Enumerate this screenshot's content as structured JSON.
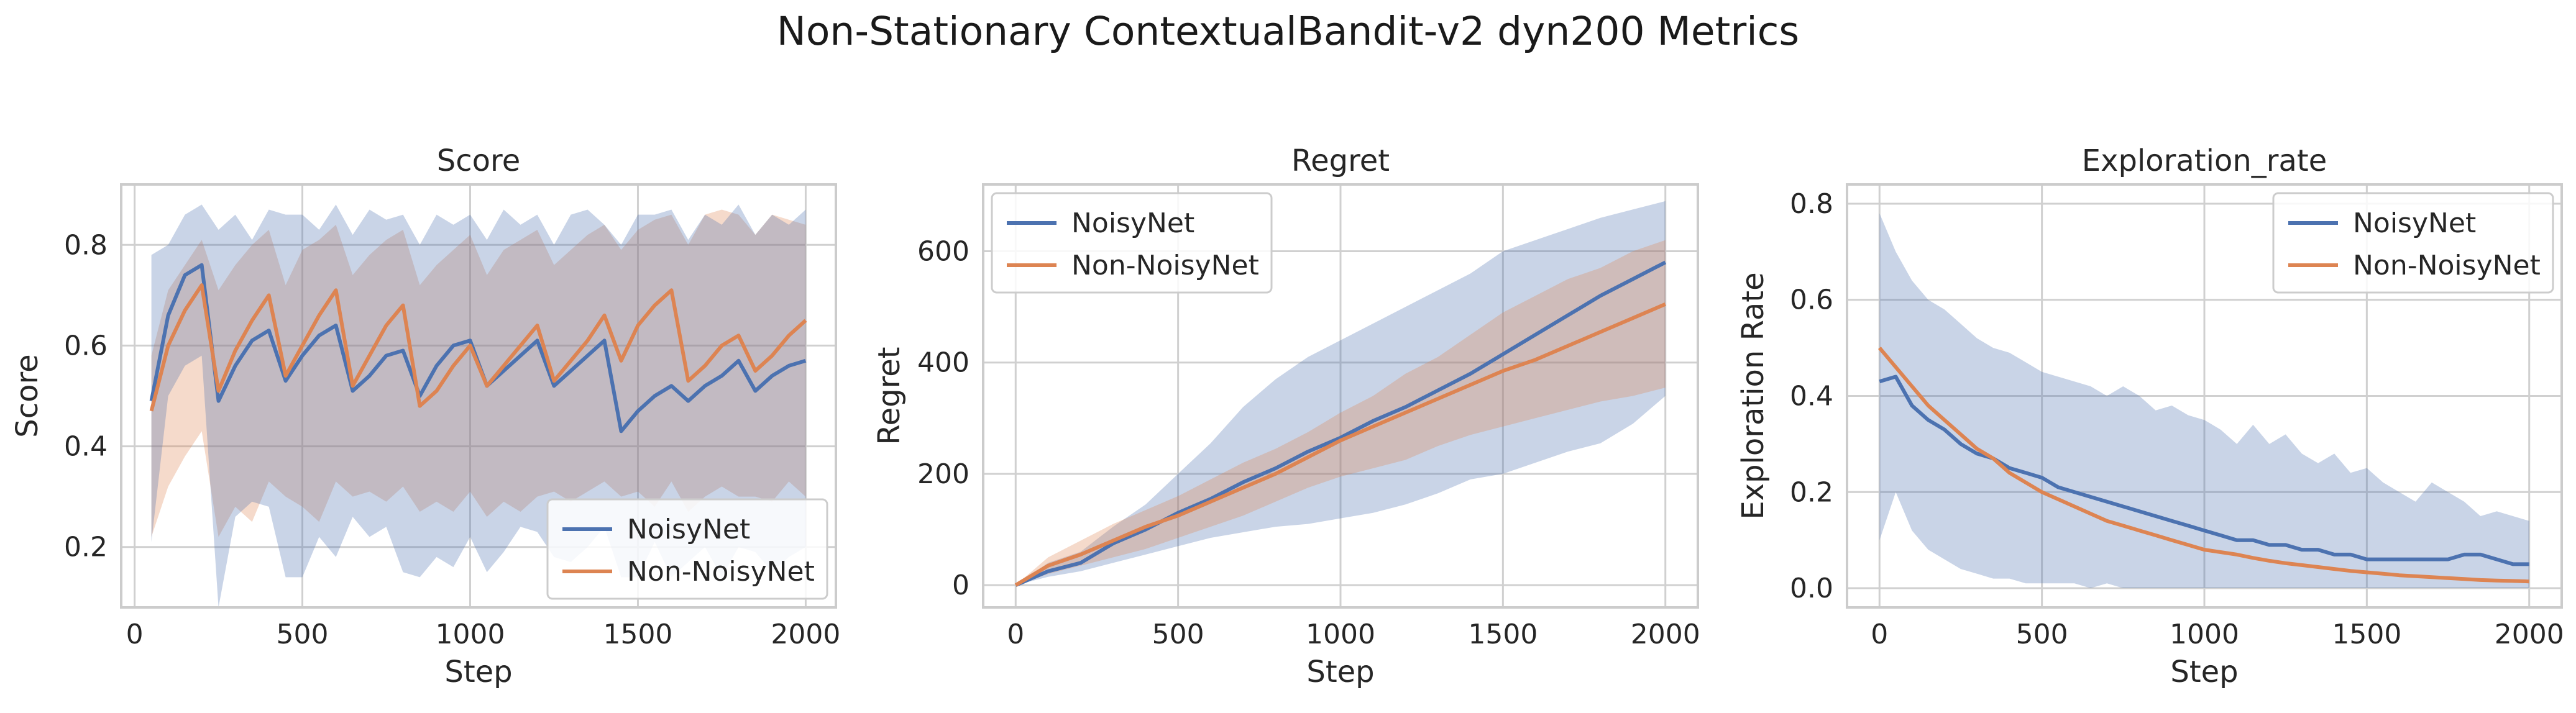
{
  "figure": {
    "title": "Non-Stationary ContextualBandit-v2 dyn200 Metrics"
  },
  "colors": {
    "NoisyNet": "#4c72b0",
    "Non-NoisyNet": "#dd8452",
    "grid": "#d0d0d0",
    "spine": "#cccccc"
  },
  "chart_data": [
    {
      "type": "line",
      "title": "Score",
      "xlabel": "Step",
      "ylabel": "Score",
      "xlim": [
        -40,
        2090
      ],
      "ylim": [
        0.08,
        0.92
      ],
      "xticks": [
        0,
        500,
        1000,
        1500,
        2000
      ],
      "xtick_labels": [
        "0",
        "500",
        "1000",
        "1500",
        "2000"
      ],
      "yticks": [
        0.2,
        0.4,
        0.6,
        0.8
      ],
      "ytick_labels": [
        "0.2",
        "0.4",
        "0.6",
        "0.8"
      ],
      "grid": true,
      "legend_position": "lower-right",
      "band_order": [
        "Non-NoisyNet",
        "NoisyNet"
      ],
      "x": [
        50,
        100,
        150,
        200,
        250,
        300,
        350,
        400,
        450,
        500,
        550,
        600,
        650,
        700,
        750,
        800,
        850,
        900,
        950,
        1000,
        1050,
        1100,
        1150,
        1200,
        1250,
        1300,
        1350,
        1400,
        1450,
        1500,
        1550,
        1600,
        1650,
        1700,
        1750,
        1800,
        1850,
        1900,
        1950,
        2000
      ],
      "series": [
        {
          "name": "NoisyNet",
          "values": [
            0.49,
            0.66,
            0.74,
            0.76,
            0.49,
            0.56,
            0.61,
            0.63,
            0.53,
            0.58,
            0.62,
            0.64,
            0.51,
            0.54,
            0.58,
            0.59,
            0.5,
            0.56,
            0.6,
            0.61,
            0.52,
            0.55,
            0.58,
            0.61,
            0.52,
            0.55,
            0.58,
            0.61,
            0.43,
            0.47,
            0.5,
            0.52,
            0.49,
            0.52,
            0.54,
            0.57,
            0.51,
            0.54,
            0.56,
            0.57
          ],
          "lower": [
            0.21,
            0.5,
            0.56,
            0.58,
            0.08,
            0.26,
            0.29,
            0.28,
            0.14,
            0.14,
            0.22,
            0.18,
            0.26,
            0.22,
            0.24,
            0.15,
            0.14,
            0.18,
            0.16,
            0.22,
            0.15,
            0.19,
            0.24,
            0.23,
            0.18,
            0.17,
            0.2,
            0.24,
            0.14,
            0.14,
            0.21,
            0.14,
            0.17,
            0.2,
            0.14,
            0.2,
            0.19,
            0.15,
            0.18,
            0.2
          ],
          "upper": [
            0.78,
            0.8,
            0.86,
            0.88,
            0.83,
            0.86,
            0.81,
            0.87,
            0.86,
            0.86,
            0.83,
            0.88,
            0.82,
            0.87,
            0.85,
            0.86,
            0.8,
            0.86,
            0.84,
            0.86,
            0.81,
            0.87,
            0.84,
            0.86,
            0.8,
            0.86,
            0.87,
            0.84,
            0.8,
            0.86,
            0.86,
            0.87,
            0.81,
            0.86,
            0.84,
            0.88,
            0.82,
            0.86,
            0.84,
            0.87
          ]
        },
        {
          "name": "Non-NoisyNet",
          "values": [
            0.47,
            0.6,
            0.67,
            0.72,
            0.51,
            0.59,
            0.65,
            0.7,
            0.54,
            0.6,
            0.66,
            0.71,
            0.52,
            0.58,
            0.64,
            0.68,
            0.48,
            0.51,
            0.56,
            0.6,
            0.52,
            0.56,
            0.6,
            0.64,
            0.53,
            0.57,
            0.61,
            0.66,
            0.57,
            0.64,
            0.68,
            0.71,
            0.53,
            0.56,
            0.6,
            0.62,
            0.55,
            0.58,
            0.62,
            0.65
          ],
          "lower": [
            0.22,
            0.32,
            0.38,
            0.43,
            0.22,
            0.28,
            0.25,
            0.33,
            0.3,
            0.28,
            0.25,
            0.33,
            0.3,
            0.31,
            0.29,
            0.32,
            0.27,
            0.29,
            0.27,
            0.31,
            0.26,
            0.29,
            0.27,
            0.3,
            0.31,
            0.29,
            0.31,
            0.33,
            0.3,
            0.31,
            0.28,
            0.33,
            0.27,
            0.3,
            0.32,
            0.3,
            0.3,
            0.29,
            0.33,
            0.3
          ],
          "upper": [
            0.58,
            0.71,
            0.76,
            0.81,
            0.71,
            0.76,
            0.8,
            0.83,
            0.72,
            0.79,
            0.81,
            0.84,
            0.74,
            0.78,
            0.81,
            0.83,
            0.72,
            0.76,
            0.79,
            0.82,
            0.74,
            0.79,
            0.81,
            0.83,
            0.76,
            0.79,
            0.82,
            0.84,
            0.79,
            0.83,
            0.85,
            0.86,
            0.8,
            0.86,
            0.87,
            0.86,
            0.82,
            0.86,
            0.85,
            0.84
          ]
        }
      ]
    },
    {
      "type": "line",
      "title": "Regret",
      "xlabel": "Step",
      "ylabel": "Regret",
      "xlim": [
        -100,
        2100
      ],
      "ylim": [
        -40,
        720
      ],
      "xticks": [
        0,
        500,
        1000,
        1500,
        2000
      ],
      "xtick_labels": [
        "0",
        "500",
        "1000",
        "1500",
        "2000"
      ],
      "yticks": [
        0,
        200,
        400,
        600
      ],
      "ytick_labels": [
        "0",
        "200",
        "400",
        "600"
      ],
      "grid": true,
      "legend_position": "top-left",
      "band_order": [
        "NoisyNet",
        "Non-NoisyNet"
      ],
      "x": [
        0,
        100,
        200,
        300,
        400,
        500,
        600,
        700,
        800,
        900,
        1000,
        1100,
        1200,
        1300,
        1400,
        1500,
        1600,
        1700,
        1800,
        1900,
        2000
      ],
      "series": [
        {
          "name": "NoisyNet",
          "values": [
            0,
            25,
            40,
            75,
            100,
            130,
            155,
            185,
            210,
            240,
            265,
            295,
            320,
            350,
            380,
            415,
            450,
            485,
            520,
            550,
            580
          ],
          "lower": [
            0,
            15,
            25,
            40,
            55,
            70,
            85,
            95,
            105,
            110,
            120,
            130,
            145,
            165,
            190,
            200,
            220,
            240,
            255,
            290,
            340
          ],
          "upper": [
            0,
            40,
            60,
            105,
            145,
            200,
            255,
            320,
            370,
            410,
            440,
            470,
            500,
            530,
            560,
            600,
            620,
            640,
            660,
            675,
            690
          ]
        },
        {
          "name": "Non-NoisyNet",
          "values": [
            0,
            35,
            55,
            80,
            105,
            125,
            150,
            175,
            200,
            230,
            260,
            285,
            310,
            335,
            360,
            385,
            405,
            430,
            455,
            480,
            505
          ],
          "lower": [
            0,
            20,
            35,
            50,
            65,
            85,
            105,
            125,
            150,
            175,
            195,
            210,
            225,
            250,
            270,
            285,
            300,
            315,
            330,
            340,
            355
          ],
          "upper": [
            0,
            50,
            80,
            110,
            135,
            160,
            190,
            220,
            245,
            275,
            310,
            340,
            380,
            410,
            450,
            490,
            520,
            550,
            570,
            600,
            620
          ]
        }
      ]
    },
    {
      "type": "line",
      "title": "Exploration_rate",
      "xlabel": "Step",
      "ylabel": "Exploration Rate",
      "xlim": [
        -100,
        2100
      ],
      "ylim": [
        -0.04,
        0.84
      ],
      "xticks": [
        0,
        500,
        1000,
        1500,
        2000
      ],
      "xtick_labels": [
        "0",
        "500",
        "1000",
        "1500",
        "2000"
      ],
      "yticks": [
        0.0,
        0.2,
        0.4,
        0.6,
        0.8
      ],
      "ytick_labels": [
        "0.0",
        "0.2",
        "0.4",
        "0.6",
        "0.8"
      ],
      "grid": true,
      "legend_position": "top-right",
      "band_order": [
        "NoisyNet",
        "Non-NoisyNet"
      ],
      "x": [
        0,
        50,
        100,
        150,
        200,
        250,
        300,
        350,
        400,
        450,
        500,
        550,
        600,
        650,
        700,
        750,
        800,
        850,
        900,
        950,
        1000,
        1050,
        1100,
        1150,
        1200,
        1250,
        1300,
        1350,
        1400,
        1450,
        1500,
        1550,
        1600,
        1650,
        1700,
        1750,
        1800,
        1850,
        1900,
        1950,
        2000
      ],
      "series": [
        {
          "name": "NoisyNet",
          "values": [
            0.43,
            0.44,
            0.38,
            0.35,
            0.33,
            0.3,
            0.28,
            0.27,
            0.25,
            0.24,
            0.23,
            0.21,
            0.2,
            0.19,
            0.18,
            0.17,
            0.16,
            0.15,
            0.14,
            0.13,
            0.12,
            0.11,
            0.1,
            0.1,
            0.09,
            0.09,
            0.08,
            0.08,
            0.07,
            0.07,
            0.06,
            0.06,
            0.06,
            0.06,
            0.06,
            0.06,
            0.07,
            0.07,
            0.06,
            0.05,
            0.05
          ],
          "lower": [
            0.1,
            0.2,
            0.12,
            0.08,
            0.06,
            0.04,
            0.03,
            0.02,
            0.02,
            0.01,
            0.01,
            0.01,
            0.01,
            0.0,
            0.01,
            0.0,
            0.0,
            0.0,
            0.0,
            0.0,
            0.0,
            0.0,
            0.0,
            0.0,
            0.0,
            0.0,
            0.0,
            0.0,
            0.0,
            0.0,
            0.0,
            0.0,
            0.0,
            0.0,
            0.0,
            0.0,
            0.0,
            0.0,
            0.0,
            0.0,
            0.0
          ],
          "upper": [
            0.78,
            0.7,
            0.64,
            0.6,
            0.58,
            0.55,
            0.52,
            0.5,
            0.49,
            0.47,
            0.45,
            0.44,
            0.43,
            0.42,
            0.4,
            0.42,
            0.4,
            0.37,
            0.38,
            0.36,
            0.35,
            0.33,
            0.3,
            0.34,
            0.3,
            0.32,
            0.28,
            0.26,
            0.28,
            0.24,
            0.25,
            0.22,
            0.2,
            0.18,
            0.22,
            0.2,
            0.18,
            0.15,
            0.16,
            0.15,
            0.14
          ]
        },
        {
          "name": "Non-NoisyNet",
          "values": [
            0.5,
            0.46,
            0.42,
            0.38,
            0.35,
            0.32,
            0.29,
            0.27,
            0.24,
            0.22,
            0.2,
            0.185,
            0.17,
            0.155,
            0.14,
            0.13,
            0.12,
            0.11,
            0.1,
            0.09,
            0.08,
            0.075,
            0.07,
            0.063,
            0.057,
            0.052,
            0.048,
            0.044,
            0.04,
            0.036,
            0.033,
            0.03,
            0.027,
            0.025,
            0.023,
            0.021,
            0.019,
            0.017,
            0.016,
            0.015,
            0.014
          ]
        }
      ]
    }
  ]
}
